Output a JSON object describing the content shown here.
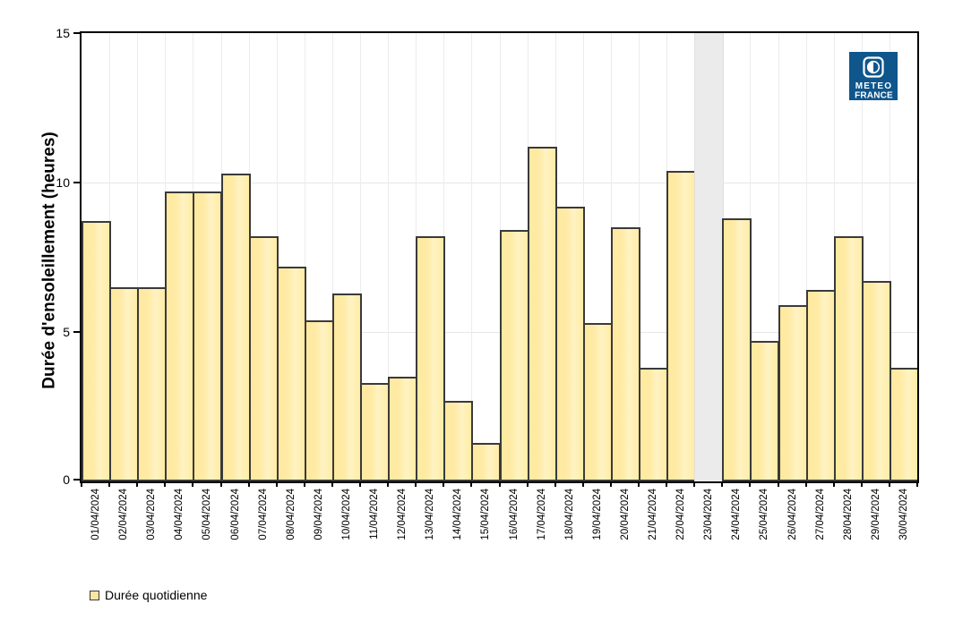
{
  "chart_data": {
    "type": "bar",
    "title": "",
    "xlabel": "",
    "ylabel": "Durée d'ensoleillement (heures)",
    "ylim": [
      0,
      15
    ],
    "yticks": [
      0,
      5,
      10,
      15
    ],
    "grid": true,
    "legend_position": "bottom-left",
    "categories": [
      "01/04/2024",
      "02/04/2024",
      "03/04/2024",
      "04/04/2024",
      "05/04/2024",
      "06/04/2024",
      "07/04/2024",
      "08/04/2024",
      "09/04/2024",
      "10/04/2024",
      "11/04/2024",
      "12/04/2024",
      "13/04/2024",
      "14/04/2024",
      "15/04/2024",
      "16/04/2024",
      "17/04/2024",
      "18/04/2024",
      "19/04/2024",
      "20/04/2024",
      "21/04/2024",
      "22/04/2024",
      "23/04/2024",
      "24/04/2024",
      "25/04/2024",
      "26/04/2024",
      "27/04/2024",
      "28/04/2024",
      "29/04/2024",
      "30/04/2024"
    ],
    "series": [
      {
        "name": "Durée quotidienne",
        "values": [
          8.7,
          6.5,
          6.5,
          9.7,
          9.7,
          10.3,
          8.2,
          7.2,
          5.4,
          6.3,
          3.3,
          3.5,
          8.2,
          2.7,
          1.3,
          8.4,
          11.2,
          9.2,
          5.3,
          8.5,
          3.8,
          10.4,
          null,
          8.8,
          4.7,
          5.9,
          6.4,
          8.2,
          6.7,
          3.8
        ]
      }
    ],
    "missing_categories": [
      "23/04/2024"
    ]
  },
  "legend": {
    "label": "Durée quotidienne"
  },
  "logo": {
    "line1": "METEO",
    "line2": "FRANCE"
  },
  "colors": {
    "bar_fill": "#FFECA6",
    "bar_fill_light": "#FFF3C3",
    "bar_border": "#3A3A3A",
    "missing_band": "#EBEBEB",
    "gridline": "#E6E6E6",
    "frame": "#000000",
    "logo_blue": "#0E568C",
    "background": "#FFFFFF"
  }
}
